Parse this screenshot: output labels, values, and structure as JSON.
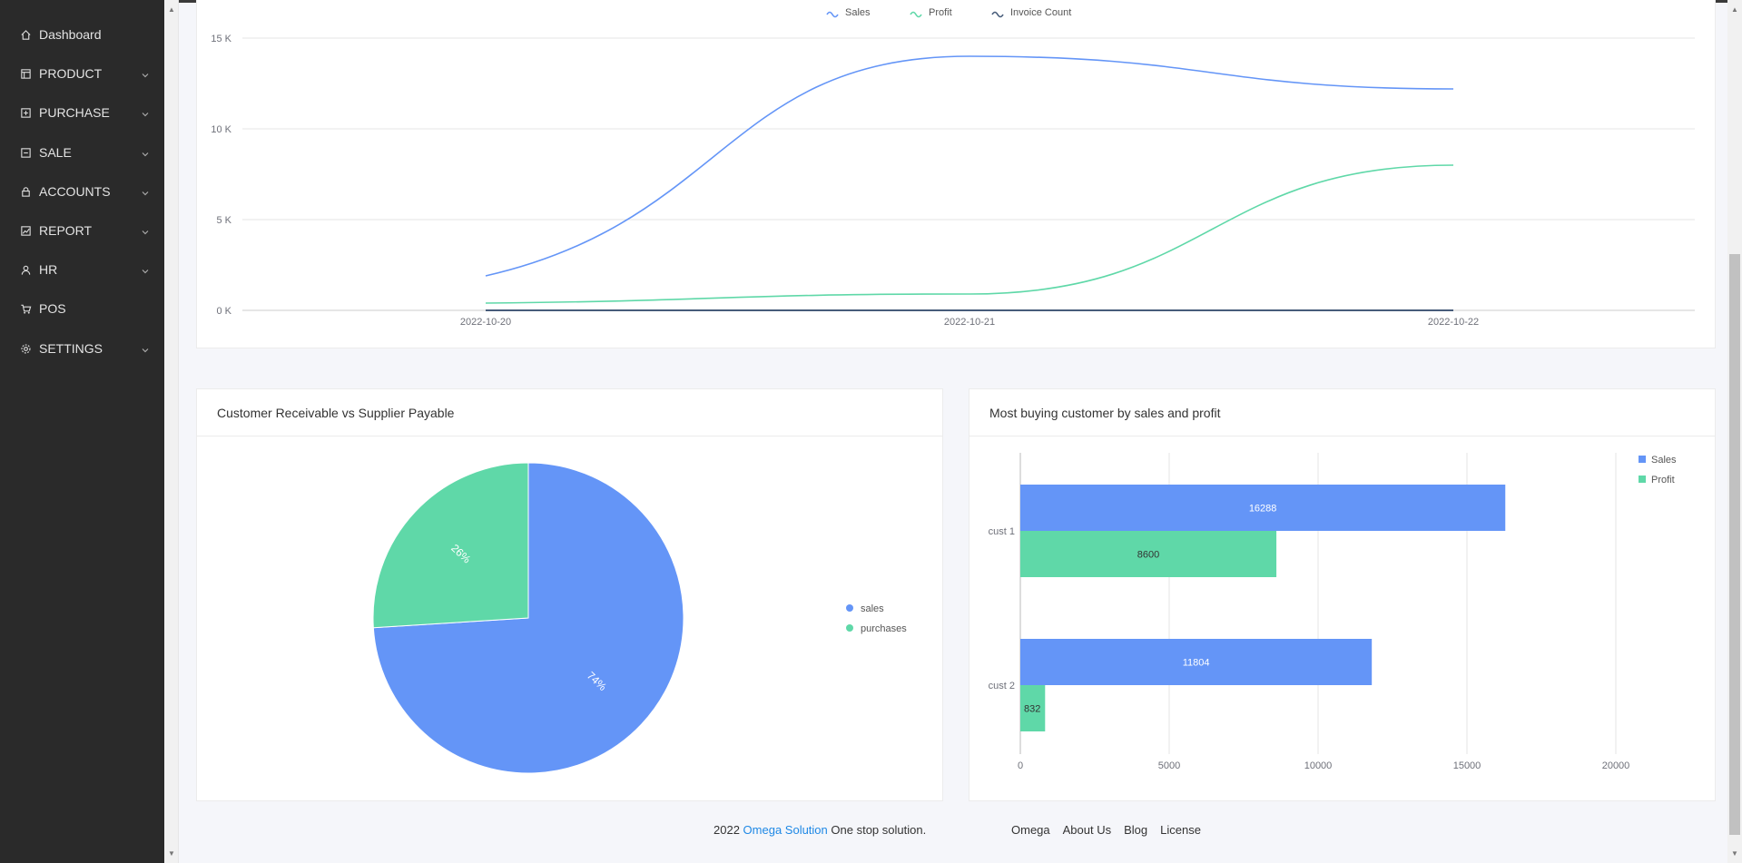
{
  "sidebar": {
    "items": [
      {
        "label": "Dashboard",
        "icon": "home-icon",
        "has_children": false
      },
      {
        "label": "PRODUCT",
        "icon": "store-icon",
        "has_children": true
      },
      {
        "label": "PURCHASE",
        "icon": "plus-square-icon",
        "has_children": true
      },
      {
        "label": "SALE",
        "icon": "minus-square-icon",
        "has_children": true
      },
      {
        "label": "ACCOUNTS",
        "icon": "lock-icon",
        "has_children": true
      },
      {
        "label": "REPORT",
        "icon": "chart-icon",
        "has_children": true
      },
      {
        "label": "HR",
        "icon": "user-icon",
        "has_children": true
      },
      {
        "label": "POS",
        "icon": "cart-icon",
        "has_children": false
      },
      {
        "label": "SETTINGS",
        "icon": "gear-icon",
        "has_children": true
      }
    ]
  },
  "colors": {
    "sales": "#6495f7",
    "profit": "#5fd8a8",
    "invoice": "#475c7a",
    "sidebar_bg": "#2a2a2a",
    "brand_link": "#1e88e5"
  },
  "chart_data": [
    {
      "type": "line",
      "legend": [
        "Sales",
        "Profit",
        "Invoice Count"
      ],
      "x": [
        "2022-10-20",
        "2022-10-21",
        "2022-10-22"
      ],
      "series": [
        {
          "name": "Sales",
          "values": [
            1900,
            14000,
            12200
          ]
        },
        {
          "name": "Profit",
          "values": [
            400,
            900,
            8000
          ]
        },
        {
          "name": "Invoice Count",
          "values": [
            2,
            3,
            2
          ]
        }
      ],
      "y_ticks": [
        "0 K",
        "5 K",
        "10 K",
        "15 K"
      ],
      "ylim": [
        0,
        15000
      ]
    },
    {
      "type": "pie",
      "title": "Customer Receivable vs Supplier Payable",
      "labels": [
        "sales",
        "purchases"
      ],
      "values": [
        74,
        26
      ],
      "value_labels": [
        "74%",
        "26%"
      ]
    },
    {
      "type": "bar",
      "orientation": "horizontal",
      "title": "Most buying customer by sales and profit",
      "categories": [
        "cust 1",
        "cust 2"
      ],
      "series": [
        {
          "name": "Sales",
          "values": [
            16288,
            11804
          ]
        },
        {
          "name": "Profit",
          "values": [
            8600,
            832
          ]
        }
      ],
      "x_ticks": [
        "0",
        "5000",
        "10000",
        "15000",
        "20000"
      ],
      "xlim": [
        0,
        20000
      ]
    }
  ],
  "footer": {
    "year": "2022",
    "brand": "Omega Solution",
    "tagline": "One stop solution.",
    "links": [
      "Omega",
      "About Us",
      "Blog",
      "License"
    ]
  }
}
